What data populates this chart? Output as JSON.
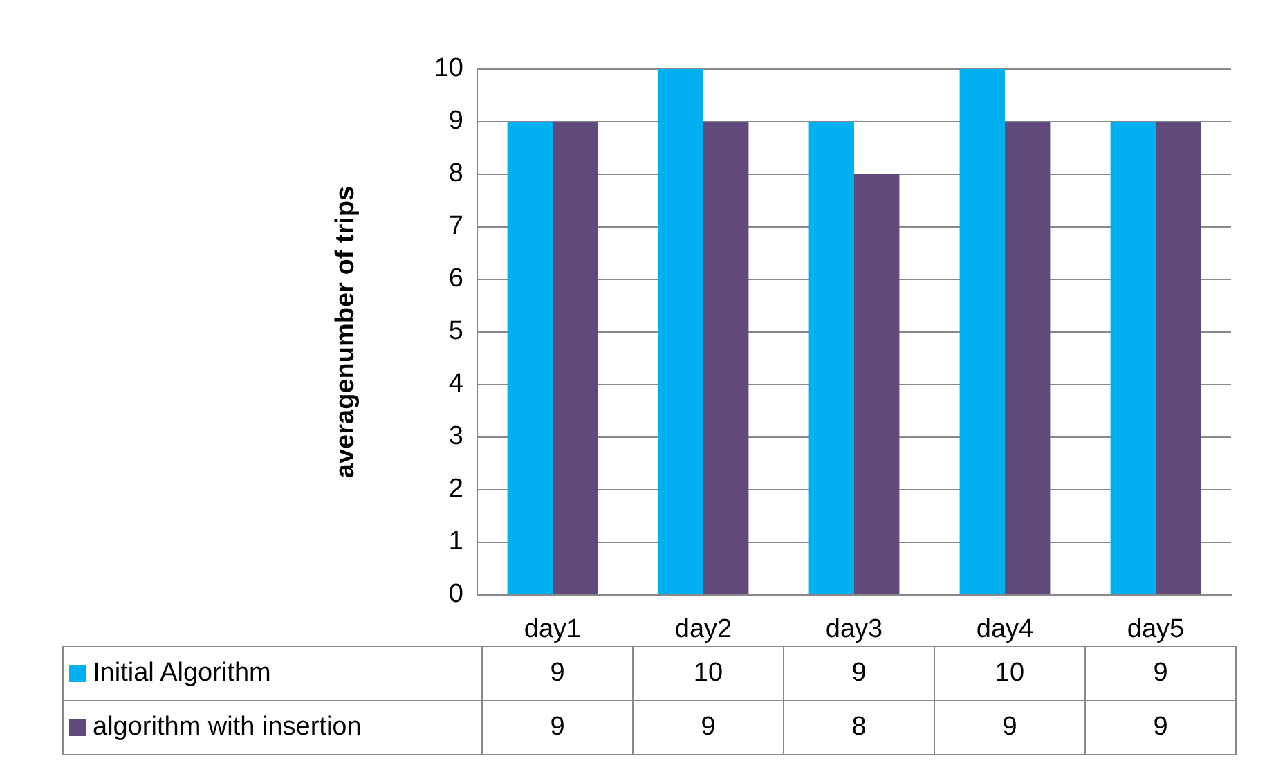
{
  "chart_data": {
    "type": "bar",
    "ylabel": "averagenumber of trips",
    "categories": [
      "day1",
      "day2",
      "day3",
      "day4",
      "day5"
    ],
    "series": [
      {
        "name": "Initial Algorithm",
        "color": "#00b0f0",
        "values": [
          9,
          10,
          9,
          10,
          9
        ]
      },
      {
        "name": "algorithm with insertion",
        "color": "#604a7b",
        "values": [
          9,
          9,
          8,
          9,
          9
        ]
      }
    ],
    "ylim": [
      0,
      10
    ],
    "yticks": [
      0,
      1,
      2,
      3,
      4,
      5,
      6,
      7,
      8,
      9,
      10
    ],
    "grid": "y",
    "legend": "bottom",
    "data_labels": true
  }
}
